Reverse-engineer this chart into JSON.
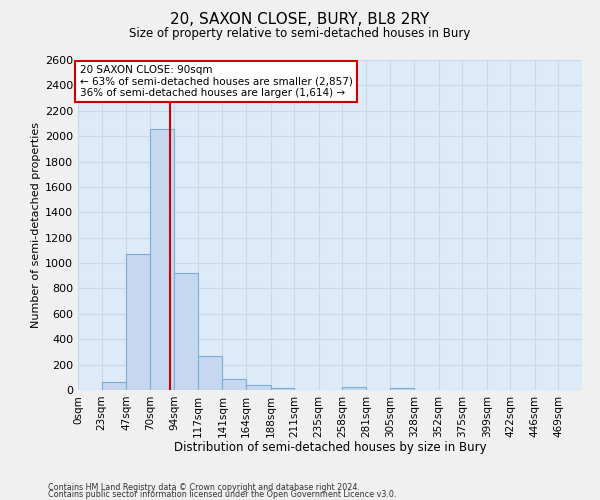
{
  "title": "20, SAXON CLOSE, BURY, BL8 2RY",
  "subtitle": "Size of property relative to semi-detached houses in Bury",
  "xlabel": "Distribution of semi-detached houses by size in Bury",
  "ylabel": "Number of semi-detached properties",
  "bar_labels": [
    "0sqm",
    "23sqm",
    "47sqm",
    "70sqm",
    "94sqm",
    "117sqm",
    "141sqm",
    "164sqm",
    "188sqm",
    "211sqm",
    "235sqm",
    "258sqm",
    "281sqm",
    "305sqm",
    "328sqm",
    "352sqm",
    "375sqm",
    "399sqm",
    "422sqm",
    "446sqm",
    "469sqm"
  ],
  "bar_values": [
    0,
    60,
    1075,
    2060,
    925,
    270,
    90,
    40,
    18,
    0,
    0,
    20,
    0,
    15,
    0,
    0,
    0,
    0,
    0,
    0,
    0
  ],
  "bar_color": "#c5d8f0",
  "bar_edge_color": "#7dadd4",
  "property_line_x": 90,
  "property_line_color": "#cc0000",
  "annotation_title": "20 SAXON CLOSE: 90sqm",
  "annotation_line1": "← 63% of semi-detached houses are smaller (2,857)",
  "annotation_line2": "36% of semi-detached houses are larger (1,614) →",
  "annotation_box_color": "#ffffff",
  "annotation_box_edge": "#cc0000",
  "ylim": [
    0,
    2600
  ],
  "yticks": [
    0,
    200,
    400,
    600,
    800,
    1000,
    1200,
    1400,
    1600,
    1800,
    2000,
    2200,
    2400,
    2600
  ],
  "grid_color": "#c8d8e8",
  "bg_color": "#ddeaf8",
  "fig_bg_color": "#f0f0f0",
  "footnote1": "Contains HM Land Registry data © Crown copyright and database right 2024.",
  "footnote2": "Contains public sector information licensed under the Open Government Licence v3.0.",
  "bin_edges": [
    0,
    23,
    47,
    70,
    94,
    117,
    141,
    164,
    188,
    211,
    235,
    258,
    281,
    305,
    328,
    352,
    375,
    399,
    422,
    446,
    469,
    492
  ]
}
